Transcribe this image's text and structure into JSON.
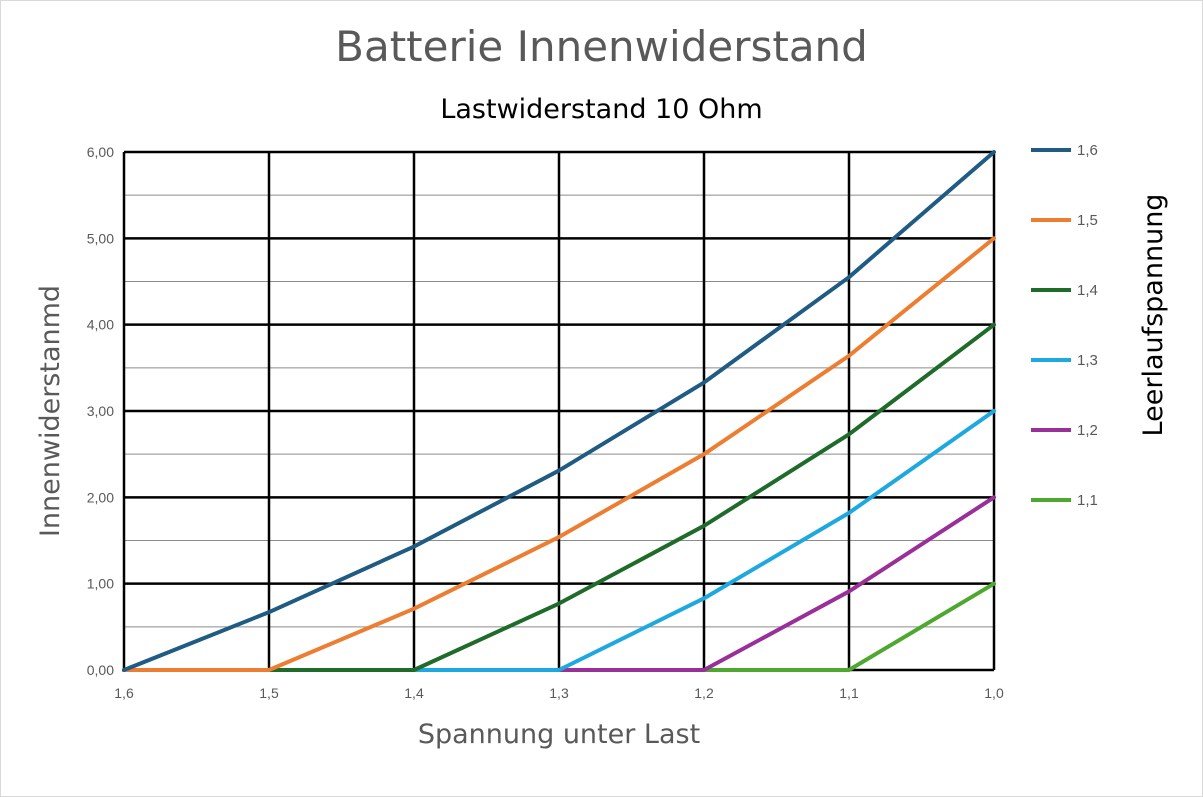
{
  "chart_data": {
    "type": "line",
    "title": "Batterie Innenwiderstand",
    "subtitle": "Lastwiderstand 10 Ohm",
    "xlabel": "Spannung unter Last",
    "ylabel": "Innenwiderstanmd",
    "legend_title": "Leerlaufspannung",
    "legend_position": "right",
    "grid": true,
    "x": [
      1.6,
      1.5,
      1.4,
      1.3,
      1.2,
      1.1,
      1.0
    ],
    "x_tick_labels": [
      "1,6",
      "1,5",
      "1,4",
      "1,3",
      "1,2",
      "1,1",
      "1,0"
    ],
    "xlim": [
      1.6,
      1.0
    ],
    "ylim": [
      0,
      6
    ],
    "y_ticks": [
      0,
      1,
      2,
      3,
      4,
      5,
      6
    ],
    "y_tick_labels": [
      "0,00",
      "1,00",
      "2,00",
      "3,00",
      "4,00",
      "5,00",
      "6,00"
    ],
    "series": [
      {
        "name": "1,6",
        "color": "#1f5b82",
        "values": [
          0,
          0.67,
          1.43,
          2.31,
          3.33,
          4.55,
          6.0
        ]
      },
      {
        "name": "1,5",
        "color": "#ed7d31",
        "values": [
          0,
          0,
          0.71,
          1.54,
          2.5,
          3.64,
          5.0
        ]
      },
      {
        "name": "1,4",
        "color": "#1e6b2a",
        "values": [
          0,
          0,
          0,
          0.77,
          1.67,
          2.73,
          4.0
        ]
      },
      {
        "name": "1,3",
        "color": "#1ea8e0",
        "values": [
          0,
          0,
          0,
          0,
          0.83,
          1.82,
          3.0
        ]
      },
      {
        "name": "1,2",
        "color": "#992f99",
        "values": [
          0,
          0,
          0,
          0,
          0,
          0.91,
          2.0
        ]
      },
      {
        "name": "1,1",
        "color": "#4ea72e",
        "values": [
          0,
          0,
          0,
          0,
          0,
          0,
          1.0
        ]
      }
    ]
  }
}
